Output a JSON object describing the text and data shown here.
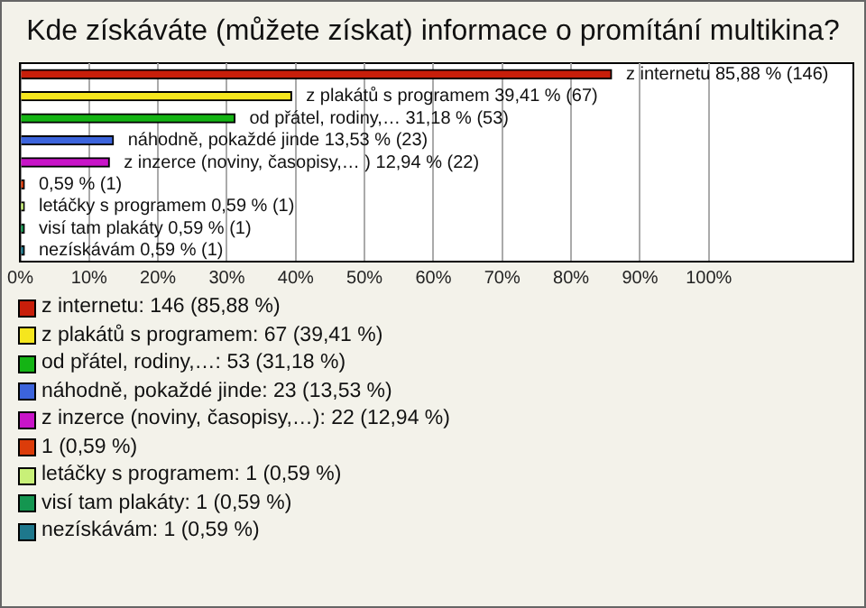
{
  "chart_data": {
    "type": "bar",
    "orientation": "horizontal",
    "stacked": true,
    "title": "Kde získáváte (můžete získat) informace o promítání multikina?",
    "categories": [
      "z internetu",
      "z plakátů s programem",
      "od přátel, rodiny,…",
      "náhodně, pokaždé jinde",
      "z inzerce (noviny, časopisy,… )",
      null,
      "letáčky s programem",
      "visí tam plakáty",
      "nezískávám"
    ],
    "series": [
      {
        "name": "z internetu: 146 (85,88 %)",
        "color": "#c81e0a",
        "values": [
          85.88,
          null,
          null,
          null,
          null,
          null,
          null,
          null,
          null
        ],
        "value_labels": [
          "85,88 % (146)",
          null,
          null,
          null,
          null,
          null,
          null,
          null,
          null
        ]
      },
      {
        "name": "z plakátů s programem: 67 (39,41 %)",
        "color": "#f5e61e",
        "values": [
          null,
          39.41,
          null,
          null,
          null,
          null,
          null,
          null,
          null
        ],
        "value_labels": [
          null,
          "39,41 % (67)",
          null,
          null,
          null,
          null,
          null,
          null,
          null
        ]
      },
      {
        "name": "od přátel, rodiny,…: 53 (31,18 %)",
        "color": "#14b414",
        "values": [
          null,
          null,
          31.18,
          null,
          null,
          null,
          null,
          null,
          null
        ],
        "value_labels": [
          null,
          null,
          "31,18 % (53)",
          null,
          null,
          null,
          null,
          null,
          null
        ]
      },
      {
        "name": "náhodně, pokaždé jinde: 23 (13,53 %)",
        "color": "#3c64dc",
        "values": [
          null,
          null,
          null,
          13.53,
          null,
          null,
          null,
          null,
          null
        ],
        "value_labels": [
          null,
          null,
          null,
          "13,53 % (23)",
          null,
          null,
          null,
          null,
          null
        ]
      },
      {
        "name": "z inzerce (noviny, časopisy,…): 22 (12,94 %)",
        "color": "#c814c8",
        "values": [
          null,
          null,
          null,
          null,
          12.94,
          null,
          null,
          null,
          null
        ],
        "value_labels": [
          null,
          null,
          null,
          null,
          "12,94 % (22)",
          null,
          null,
          null,
          null
        ]
      },
      {
        "name": "1 (0,59 %)",
        "color": "#dc3c0a",
        "values": [
          null,
          null,
          null,
          null,
          null,
          0.59,
          null,
          null,
          null
        ],
        "value_labels": [
          null,
          null,
          null,
          null,
          null,
          "0,59 % (1)",
          null,
          null,
          null
        ]
      },
      {
        "name": "letáčky s programem: 1 (0,59 %)",
        "color": "#c8f078",
        "values": [
          null,
          null,
          null,
          null,
          null,
          null,
          0.59,
          null,
          null
        ],
        "value_labels": [
          null,
          null,
          null,
          null,
          null,
          null,
          "0,59 % (1)",
          null,
          null
        ]
      },
      {
        "name": "visí tam plakáty: 1 (0,59 %)",
        "color": "#149650",
        "values": [
          null,
          null,
          null,
          null,
          null,
          null,
          null,
          0.59,
          null
        ],
        "value_labels": [
          null,
          null,
          null,
          null,
          null,
          null,
          null,
          "0,59 % (1)",
          null
        ]
      },
      {
        "name": "nezískávám: 1 (0,59 %)",
        "color": "#1e788c",
        "values": [
          null,
          null,
          null,
          null,
          null,
          null,
          null,
          null,
          0.59
        ],
        "value_labels": [
          null,
          null,
          null,
          null,
          null,
          null,
          null,
          null,
          "0,59 % (1)"
        ]
      }
    ],
    "xlim": [
      0,
      121
    ],
    "xticks": [
      {
        "value": 0,
        "label": "0%"
      },
      {
        "value": 10,
        "label": "10%"
      },
      {
        "value": 20,
        "label": "20%"
      },
      {
        "value": 30,
        "label": "30%"
      },
      {
        "value": 40,
        "label": "40%"
      },
      {
        "value": 50,
        "label": "50%"
      },
      {
        "value": 60,
        "label": "60%"
      },
      {
        "value": 70,
        "label": "70%"
      },
      {
        "value": 80,
        "label": "80%"
      },
      {
        "value": 90,
        "label": "90%"
      },
      {
        "value": 100,
        "label": "100%"
      }
    ],
    "tick_labels": "x",
    "grid": "x",
    "legend": "bottom"
  }
}
